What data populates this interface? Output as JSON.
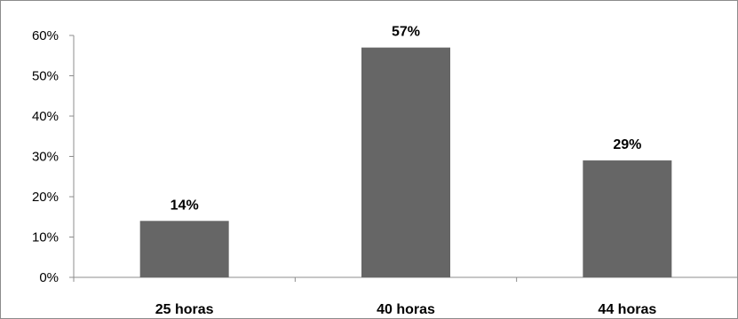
{
  "chart_data": {
    "type": "bar",
    "categories": [
      "25 horas",
      "40 horas",
      "44 horas"
    ],
    "values": [
      14,
      57,
      29
    ],
    "data_labels": [
      "14%",
      "57%",
      "29%"
    ],
    "ylim": [
      0,
      60
    ],
    "yticks": [
      0,
      10,
      20,
      30,
      40,
      50,
      60
    ],
    "ytick_labels": [
      "0%",
      "10%",
      "20%",
      "30%",
      "40%",
      "50%",
      "60%"
    ],
    "title": "",
    "xlabel": "",
    "ylabel": "",
    "grid": false,
    "legend": "none",
    "bar_color": "#666666"
  }
}
